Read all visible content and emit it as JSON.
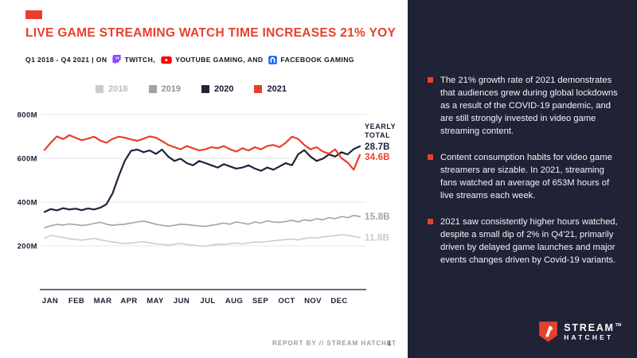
{
  "slide": {
    "title": "LIVE GAME STREAMING WATCH TIME INCREASES 21% YOY",
    "subtitle": {
      "prefix": "Q1 2018 - Q4 2021 | ON",
      "platforms": [
        {
          "label": "TWITCH,",
          "icon": "twitch-icon",
          "color": "#9146FF"
        },
        {
          "label": "YOUTUBE GAMING, AND",
          "icon": "youtube-icon",
          "color": "#FF0000"
        },
        {
          "label": "FACEBOOK GAMING",
          "icon": "facebook-gaming-icon",
          "color": "#0866FF"
        }
      ]
    },
    "footer": {
      "report_by": "REPORT BY // STREAM HATCHET",
      "page_number": "4"
    }
  },
  "chart_data": {
    "type": "line",
    "title": "LIVE GAME STREAMING WATCH TIME INCREASES 21% YOY",
    "x_unit": "weeks (Jan–Dec, one point per week)",
    "months": [
      "JAN",
      "FEB",
      "MAR",
      "APR",
      "MAY",
      "JUN",
      "JUL",
      "AUG",
      "SEP",
      "OCT",
      "NOV",
      "DEC"
    ],
    "ylim": [
      0,
      800
    ],
    "y_unit": "hours watched (millions)",
    "yticks": [
      {
        "value": 800,
        "label": "800M"
      },
      {
        "value": 600,
        "label": "600M"
      },
      {
        "value": 400,
        "label": "400M"
      },
      {
        "value": 200,
        "label": "200M"
      }
    ],
    "grid": true,
    "legend_position": "top-center",
    "yearly_total_header": [
      "YEARLY",
      "TOTAL"
    ],
    "series": [
      {
        "name": "2018",
        "color": "#C9CCCE",
        "label_color": "#b9bcbf",
        "yearly_total": "11.8B",
        "values": [
          235,
          248,
          242,
          238,
          232,
          230,
          226,
          230,
          234,
          228,
          222,
          218,
          214,
          210,
          213,
          216,
          219,
          214,
          209,
          206,
          204,
          208,
          211,
          207,
          203,
          200,
          198,
          203,
          208,
          206,
          210,
          213,
          208,
          213,
          218,
          216,
          220,
          223,
          226,
          229,
          231,
          227,
          233,
          238,
          236,
          241,
          244,
          247,
          251,
          248,
          243,
          238
        ]
      },
      {
        "name": "2019",
        "color": "#9FA3A7",
        "label_color": "#8f9397",
        "yearly_total": "15.8B",
        "values": [
          282,
          292,
          298,
          295,
          300,
          297,
          293,
          296,
          302,
          308,
          299,
          294,
          297,
          299,
          304,
          309,
          313,
          306,
          299,
          294,
          289,
          294,
          299,
          297,
          294,
          291,
          289,
          294,
          299,
          304,
          299,
          309,
          304,
          299,
          309,
          304,
          314,
          309,
          307,
          311,
          317,
          309,
          319,
          314,
          324,
          319,
          329,
          324,
          334,
          329,
          339,
          334
        ]
      },
      {
        "name": "2020",
        "color": "#20243A",
        "label_color": "#16192c",
        "yearly_total": "28.7B",
        "values": [
          355,
          368,
          362,
          372,
          366,
          370,
          363,
          371,
          366,
          374,
          390,
          440,
          520,
          590,
          635,
          640,
          628,
          636,
          620,
          640,
          608,
          588,
          598,
          578,
          568,
          588,
          578,
          568,
          558,
          573,
          563,
          553,
          558,
          568,
          553,
          543,
          558,
          548,
          563,
          578,
          568,
          618,
          638,
          608,
          588,
          598,
          618,
          608,
          628,
          618,
          642,
          655
        ]
      },
      {
        "name": "2021",
        "color": "#E8402C",
        "label_color": "#16192c",
        "yearly_total": "34.6B",
        "values": [
          638,
          672,
          700,
          688,
          706,
          694,
          683,
          690,
          699,
          681,
          671,
          689,
          699,
          694,
          686,
          680,
          690,
          700,
          694,
          679,
          661,
          651,
          641,
          656,
          646,
          636,
          641,
          651,
          646,
          656,
          641,
          631,
          646,
          636,
          651,
          641,
          656,
          661,
          651,
          671,
          699,
          689,
          661,
          641,
          651,
          631,
          621,
          641,
          601,
          581,
          548,
          616
        ]
      }
    ]
  },
  "sidebar": {
    "bullets": [
      "The 21% growth rate of 2021 demonstrates that audiences grew during global lockdowns as a result of the COVID-19 pandemic, and are still strongly invested in video game streaming content.",
      "Content consumption habits for video game streamers are sizable. In 2021, streaming fans watched an average of 653M hours of live streams each week.",
      "2021 saw consistently higher hours watched, despite a small dip of 2% in Q4'21, primarily driven by delayed game launches and major events changes driven by Covid-19 variants."
    ]
  },
  "logo": {
    "name_line1": "STREAM",
    "name_line2": "HATCHET",
    "trademark": "TM"
  }
}
